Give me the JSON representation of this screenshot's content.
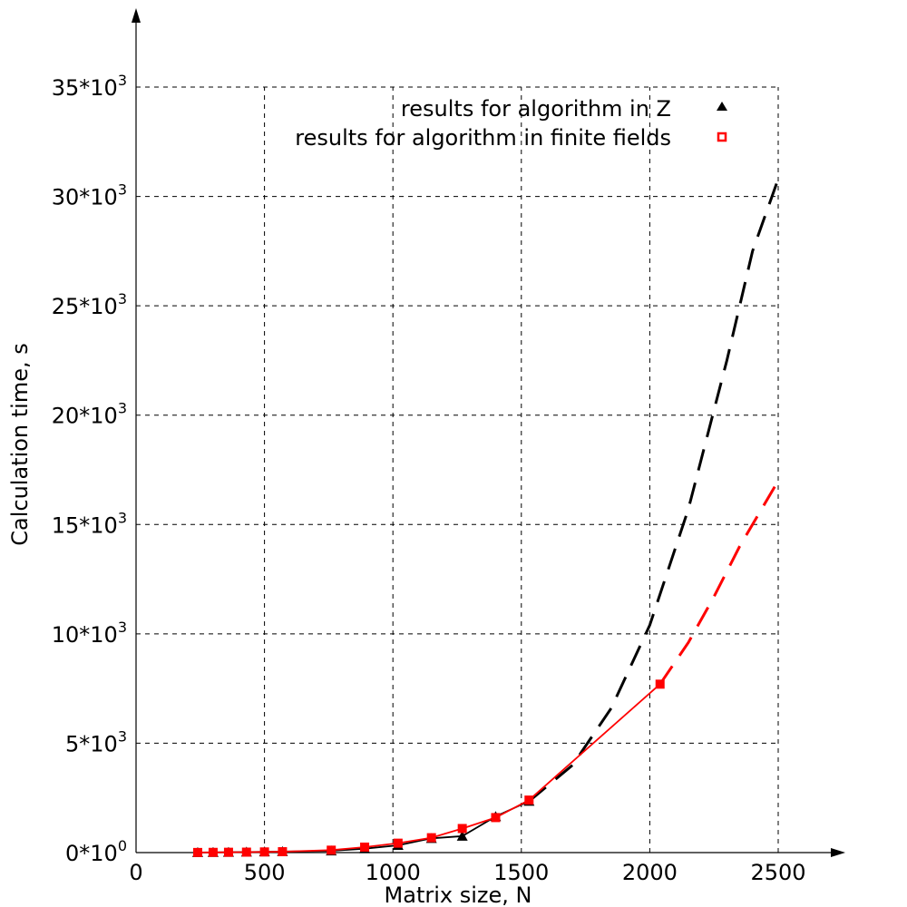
{
  "chart_data": {
    "type": "line",
    "title": "",
    "xlabel": "Matrix size, N",
    "ylabel": "Calculation time, s",
    "xlim": [
      0,
      2500
    ],
    "ylim": [
      0,
      35000
    ],
    "grid": true,
    "legend_position": "top-right",
    "x_ticks": [
      {
        "value": 0,
        "label": "0"
      },
      {
        "value": 500,
        "label": "500"
      },
      {
        "value": 1000,
        "label": "1000"
      },
      {
        "value": 1500,
        "label": "1500"
      },
      {
        "value": 2000,
        "label": "2000"
      },
      {
        "value": 2500,
        "label": "2500"
      }
    ],
    "y_ticks": [
      {
        "value": 0,
        "mantissa": "0*10",
        "exp": "0"
      },
      {
        "value": 5000,
        "mantissa": "5*10",
        "exp": "3"
      },
      {
        "value": 10000,
        "mantissa": "10*10",
        "exp": "3"
      },
      {
        "value": 15000,
        "mantissa": "15*10",
        "exp": "3"
      },
      {
        "value": 20000,
        "mantissa": "20*10",
        "exp": "3"
      },
      {
        "value": 25000,
        "mantissa": "25*10",
        "exp": "3"
      },
      {
        "value": 30000,
        "mantissa": "30*10",
        "exp": "3"
      },
      {
        "value": 35000,
        "mantissa": "35*10",
        "exp": "3"
      }
    ],
    "series": [
      {
        "name": "results for algorithm in Z",
        "color": "#000000",
        "marker": "triangle",
        "points": [
          [
            240,
            5
          ],
          [
            300,
            10
          ],
          [
            360,
            15
          ],
          [
            430,
            25
          ],
          [
            500,
            35
          ],
          [
            570,
            45
          ],
          [
            760,
            80
          ],
          [
            890,
            180
          ],
          [
            1020,
            330
          ],
          [
            1150,
            650
          ],
          [
            1270,
            750
          ],
          [
            1400,
            1650
          ],
          [
            1530,
            2350
          ]
        ],
        "extrapolation": [
          [
            1530,
            2350
          ],
          [
            1700,
            4000
          ],
          [
            1850,
            6600
          ],
          [
            2000,
            10400
          ],
          [
            2150,
            15700
          ],
          [
            2300,
            22500
          ],
          [
            2400,
            27500
          ],
          [
            2500,
            30800
          ]
        ]
      },
      {
        "name": "results for algorithm in finite fields",
        "color": "#ff0000",
        "marker": "square",
        "points": [
          [
            240,
            5
          ],
          [
            300,
            10
          ],
          [
            360,
            15
          ],
          [
            430,
            20
          ],
          [
            500,
            30
          ],
          [
            570,
            40
          ],
          [
            760,
            110
          ],
          [
            890,
            250
          ],
          [
            1020,
            430
          ],
          [
            1150,
            680
          ],
          [
            1270,
            1100
          ],
          [
            1400,
            1600
          ],
          [
            1530,
            2400
          ],
          [
            2040,
            7700
          ]
        ],
        "extrapolation": [
          [
            2040,
            7700
          ],
          [
            2150,
            9600
          ],
          [
            2250,
            11700
          ],
          [
            2350,
            14000
          ],
          [
            2500,
            17000
          ]
        ]
      }
    ]
  }
}
